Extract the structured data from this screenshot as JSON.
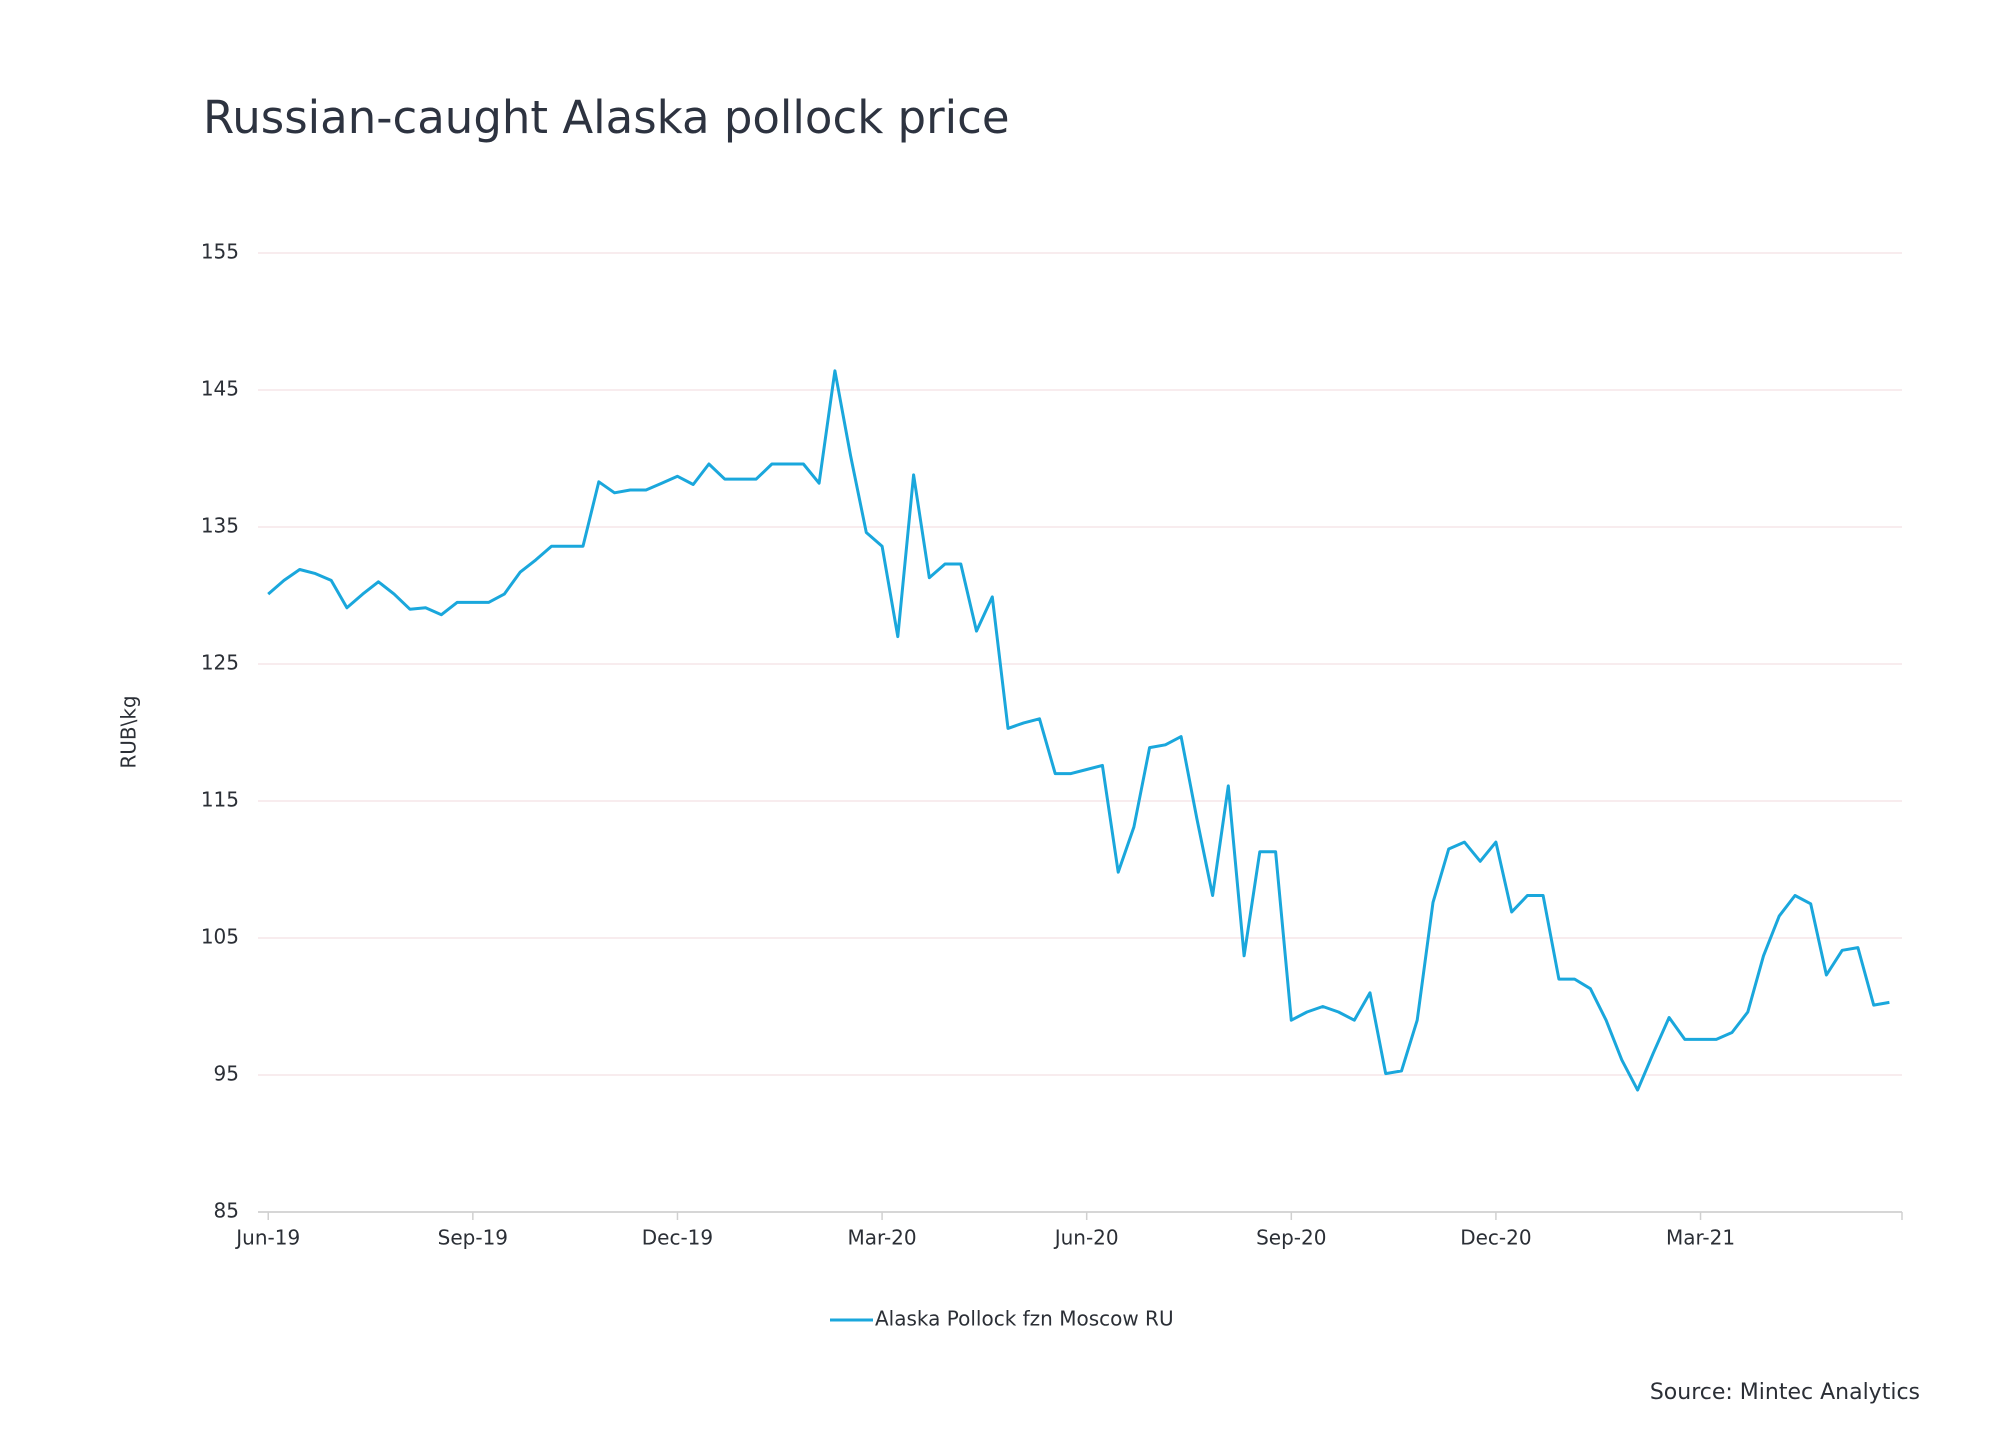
{
  "chart_data": {
    "type": "line",
    "title": "Russian-caught Alaska pollock price",
    "y_label": "RUB\\kg",
    "source": "Source: Mintec Analytics",
    "categories": [
      "Jun-19",
      null,
      null,
      null,
      null,
      null,
      null,
      null,
      null,
      null,
      null,
      null,
      null,
      "Sep-19",
      null,
      null,
      null,
      null,
      null,
      null,
      null,
      null,
      null,
      null,
      null,
      null,
      "Dec-19",
      null,
      null,
      null,
      null,
      null,
      null,
      null,
      null,
      null,
      null,
      null,
      null,
      "Mar-20",
      null,
      null,
      null,
      null,
      null,
      null,
      null,
      null,
      null,
      null,
      null,
      null,
      "Jun-20",
      null,
      null,
      null,
      null,
      null,
      null,
      null,
      null,
      null,
      null,
      null,
      null,
      "Sep-20",
      null,
      null,
      null,
      null,
      null,
      null,
      null,
      null,
      null,
      null,
      null,
      null,
      "Dec-20",
      null,
      null,
      null,
      null,
      null,
      null,
      null,
      null,
      null,
      null,
      null,
      null,
      "Mar-21",
      null,
      null,
      null,
      null,
      null,
      null,
      null,
      null,
      null,
      null,
      null,
      null
    ],
    "series": [
      {
        "name": "Alaska Pollock fzn Moscow RU",
        "color": "#1aa7dc",
        "values": [
          130.1,
          131.1,
          131.9,
          131.6,
          131.1,
          129.1,
          130.1,
          131.0,
          130.1,
          129.0,
          129.1,
          128.6,
          129.5,
          129.5,
          129.5,
          130.1,
          131.7,
          132.6,
          133.6,
          133.6,
          133.6,
          138.3,
          137.5,
          137.7,
          137.7,
          138.2,
          138.7,
          138.1,
          139.6,
          138.5,
          138.5,
          138.5,
          139.6,
          139.6,
          139.6,
          138.2,
          146.4,
          140.2,
          134.6,
          133.6,
          127.0,
          138.8,
          131.3,
          132.3,
          132.3,
          127.4,
          129.9,
          120.3,
          120.7,
          121.0,
          117.0,
          117.0,
          117.3,
          117.6,
          109.8,
          113.1,
          118.9,
          119.1,
          119.7,
          113.7,
          108.1,
          116.1,
          103.7,
          111.3,
          111.3,
          99.0,
          99.6,
          100.0,
          99.6,
          99.0,
          101.0,
          95.1,
          95.3,
          99.0,
          107.6,
          111.5,
          112.0,
          110.6,
          112.0,
          106.9,
          108.1,
          108.1,
          102.0,
          102.0,
          101.3,
          99.0,
          96.1,
          93.9,
          96.6,
          99.2,
          97.6,
          97.6,
          97.6,
          98.1,
          99.6,
          103.7,
          106.6,
          108.1,
          107.5,
          102.3,
          104.1,
          104.3,
          100.1,
          100.3
        ]
      }
    ],
    "ylim": [
      85,
      155
    ],
    "yticks": [
      85,
      95,
      105,
      115,
      125,
      135,
      145,
      155
    ],
    "grid": true,
    "legend": "bottom"
  }
}
